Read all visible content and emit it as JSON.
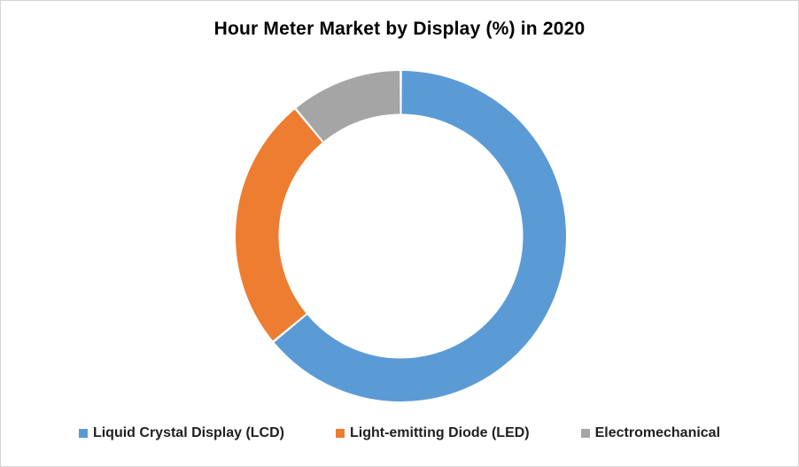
{
  "frame": {
    "background": "#FFFFFF",
    "border_color": "#D5D5D5"
  },
  "chart_data": {
    "type": "pie",
    "subtype": "donut",
    "title": "Hour Meter Market by Display (%) in 2020",
    "unit": "%",
    "categories": [
      "Liquid Crystal Display (LCD)",
      "Light-emitting Diode (LED)",
      "Electromechanical"
    ],
    "values": [
      64,
      25,
      11
    ],
    "slice_colors": [
      "#5B9BD5",
      "#ED7D31",
      "#A5A5A5"
    ],
    "start_angle_deg": 0,
    "direction": "clockwise",
    "donut_hole_ratio": 0.74,
    "slice_gap_deg": 0.8,
    "legend_position": "bottom",
    "data_labels_visible": false,
    "title_color": "#000000",
    "legend_text_color": "#1F1F1F"
  }
}
